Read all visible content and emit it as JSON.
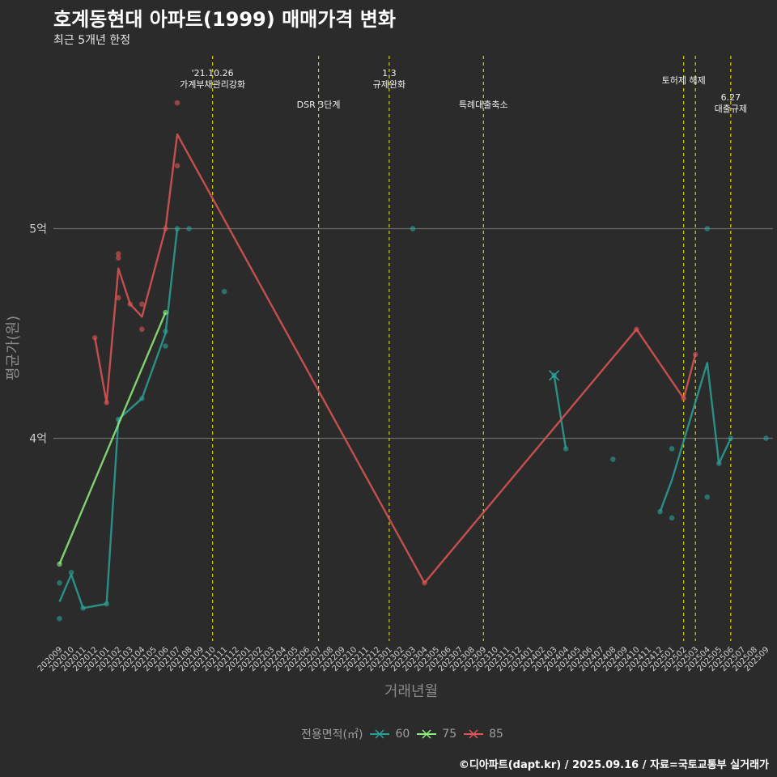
{
  "title": "호계동현대 아파트(1999) 매매가격 변화",
  "subtitle": "최근 5개년 한정",
  "caption": "©디아파트(dapt.kr) / 2025.09.16 / 자료=국토교통부 실거래가",
  "chart_data": {
    "type": "line",
    "title": "호계동현대 아파트(1999) 매매가격 변화",
    "subtitle": "최근 5개년 한정",
    "xlabel": "거래년월",
    "ylabel": "평균가(원)",
    "ylim": [
      3.04,
      5.98
    ],
    "y_ticks": [
      {
        "value": 4.0,
        "label": "4억"
      },
      {
        "value": 5.0,
        "label": "5억"
      }
    ],
    "x_ticks": [
      "202009",
      "202010",
      "202011",
      "202012",
      "202101",
      "202102",
      "202103",
      "202104",
      "202105",
      "202106",
      "202107",
      "202108",
      "202109",
      "202110",
      "202111",
      "202112",
      "202201",
      "202202",
      "202203",
      "202204",
      "202205",
      "202206",
      "202207",
      "202208",
      "202209",
      "202210",
      "202211",
      "202212",
      "202301",
      "202302",
      "202303",
      "202304",
      "202305",
      "202306",
      "202307",
      "202308",
      "202309",
      "202310",
      "202311",
      "202312",
      "202401",
      "202402",
      "202403",
      "202404",
      "202405",
      "202406",
      "202407",
      "202408",
      "202409",
      "202410",
      "202411",
      "202412",
      "202501",
      "202502",
      "202503",
      "202504",
      "202505",
      "202506",
      "202507",
      "202508",
      "202509"
    ],
    "legend_title": "전용면적(㎡)",
    "series": [
      {
        "name": "60",
        "color": "#2aa198",
        "line": [
          {
            "x": "202009",
            "y": 3.22
          },
          {
            "x": "202010",
            "y": 3.35
          },
          {
            "x": "202011",
            "y": 3.19
          },
          {
            "x": "202101",
            "y": 3.21
          },
          {
            "x": "202102",
            "y": 4.09
          },
          {
            "x": "202104",
            "y": 4.19
          },
          {
            "x": "202106",
            "y": 4.5
          },
          {
            "x": "202107",
            "y": 5.0
          },
          {
            "x": "202403",
            "y": 4.3
          },
          {
            "x": "202404",
            "y": 3.95
          },
          {
            "x": "202412",
            "y": 3.65
          },
          {
            "x": "202501",
            "y": 3.8
          },
          {
            "x": "202504",
            "y": 4.36
          },
          {
            "x": "202505",
            "y": 3.88
          },
          {
            "x": "202506",
            "y": 4.0
          }
        ],
        "points": [
          {
            "x": "202009",
            "y": 3.31
          },
          {
            "x": "202009",
            "y": 3.14
          },
          {
            "x": "202010",
            "y": 3.36
          },
          {
            "x": "202011",
            "y": 3.19
          },
          {
            "x": "202101",
            "y": 3.21
          },
          {
            "x": "202102",
            "y": 4.09
          },
          {
            "x": "202104",
            "y": 4.19
          },
          {
            "x": "202106",
            "y": 4.44
          },
          {
            "x": "202106",
            "y": 4.51
          },
          {
            "x": "202107",
            "y": 5.0
          },
          {
            "x": "202108",
            "y": 5.0
          },
          {
            "x": "202111",
            "y": 4.7
          },
          {
            "x": "202303",
            "y": 5.0
          },
          {
            "x": "202403",
            "y": 4.3
          },
          {
            "x": "202404",
            "y": 3.95
          },
          {
            "x": "202408",
            "y": 3.9
          },
          {
            "x": "202412",
            "y": 3.65
          },
          {
            "x": "202501",
            "y": 3.95
          },
          {
            "x": "202501",
            "y": 3.62
          },
          {
            "x": "202504",
            "y": 5.0
          },
          {
            "x": "202504",
            "y": 3.72
          },
          {
            "x": "202505",
            "y": 3.88
          },
          {
            "x": "202506",
            "y": 4.0
          },
          {
            "x": "202509",
            "y": 4.0
          }
        ]
      },
      {
        "name": "75",
        "color": "#90ee7e",
        "line": [
          {
            "x": "202009",
            "y": 3.4
          },
          {
            "x": "202106",
            "y": 4.6
          }
        ],
        "points": [
          {
            "x": "202009",
            "y": 3.4
          },
          {
            "x": "202106",
            "y": 4.6
          }
        ]
      },
      {
        "name": "85",
        "color": "#e05555",
        "line": [
          {
            "x": "202012",
            "y": 4.48
          },
          {
            "x": "202101",
            "y": 4.17
          },
          {
            "x": "202102",
            "y": 4.81
          },
          {
            "x": "202103",
            "y": 4.64
          },
          {
            "x": "202104",
            "y": 4.58
          },
          {
            "x": "202106",
            "y": 5.0
          },
          {
            "x": "202107",
            "y": 5.45
          },
          {
            "x": "202304",
            "y": 3.31
          },
          {
            "x": "202410",
            "y": 4.52
          },
          {
            "x": "202502",
            "y": 4.19
          },
          {
            "x": "202503",
            "y": 4.4
          }
        ],
        "points": [
          {
            "x": "202012",
            "y": 4.48
          },
          {
            "x": "202101",
            "y": 4.17
          },
          {
            "x": "202102",
            "y": 4.88
          },
          {
            "x": "202102",
            "y": 4.86
          },
          {
            "x": "202102",
            "y": 4.67
          },
          {
            "x": "202103",
            "y": 4.64
          },
          {
            "x": "202104",
            "y": 4.64
          },
          {
            "x": "202104",
            "y": 4.52
          },
          {
            "x": "202106",
            "y": 5.0
          },
          {
            "x": "202107",
            "y": 5.6
          },
          {
            "x": "202107",
            "y": 5.3
          },
          {
            "x": "202304",
            "y": 3.31
          },
          {
            "x": "202410",
            "y": 4.52
          },
          {
            "x": "202502",
            "y": 4.19
          },
          {
            "x": "202503",
            "y": 4.4
          }
        ]
      }
    ],
    "annotations": [
      {
        "x": "202110",
        "lines": [
          "'21.10.26",
          "가계부채관리강화"
        ],
        "row": 0
      },
      {
        "x": "202207",
        "lines": [
          "DSR 3단계"
        ],
        "row": 1
      },
      {
        "x": "202301",
        "lines": [
          "1.3",
          "규제완화"
        ],
        "row": 0
      },
      {
        "x": "202309",
        "lines": [
          "특례대출축소"
        ],
        "row": 1
      },
      {
        "x": "202502",
        "lines": [
          "토허제 해제"
        ],
        "row": 0
      },
      {
        "x": "202506",
        "lines": [
          "6.27",
          "대출규제"
        ],
        "row": 2
      }
    ],
    "vlines": [
      "202110",
      "202207",
      "202301",
      "202309",
      "202502",
      "202503",
      "202506"
    ]
  }
}
